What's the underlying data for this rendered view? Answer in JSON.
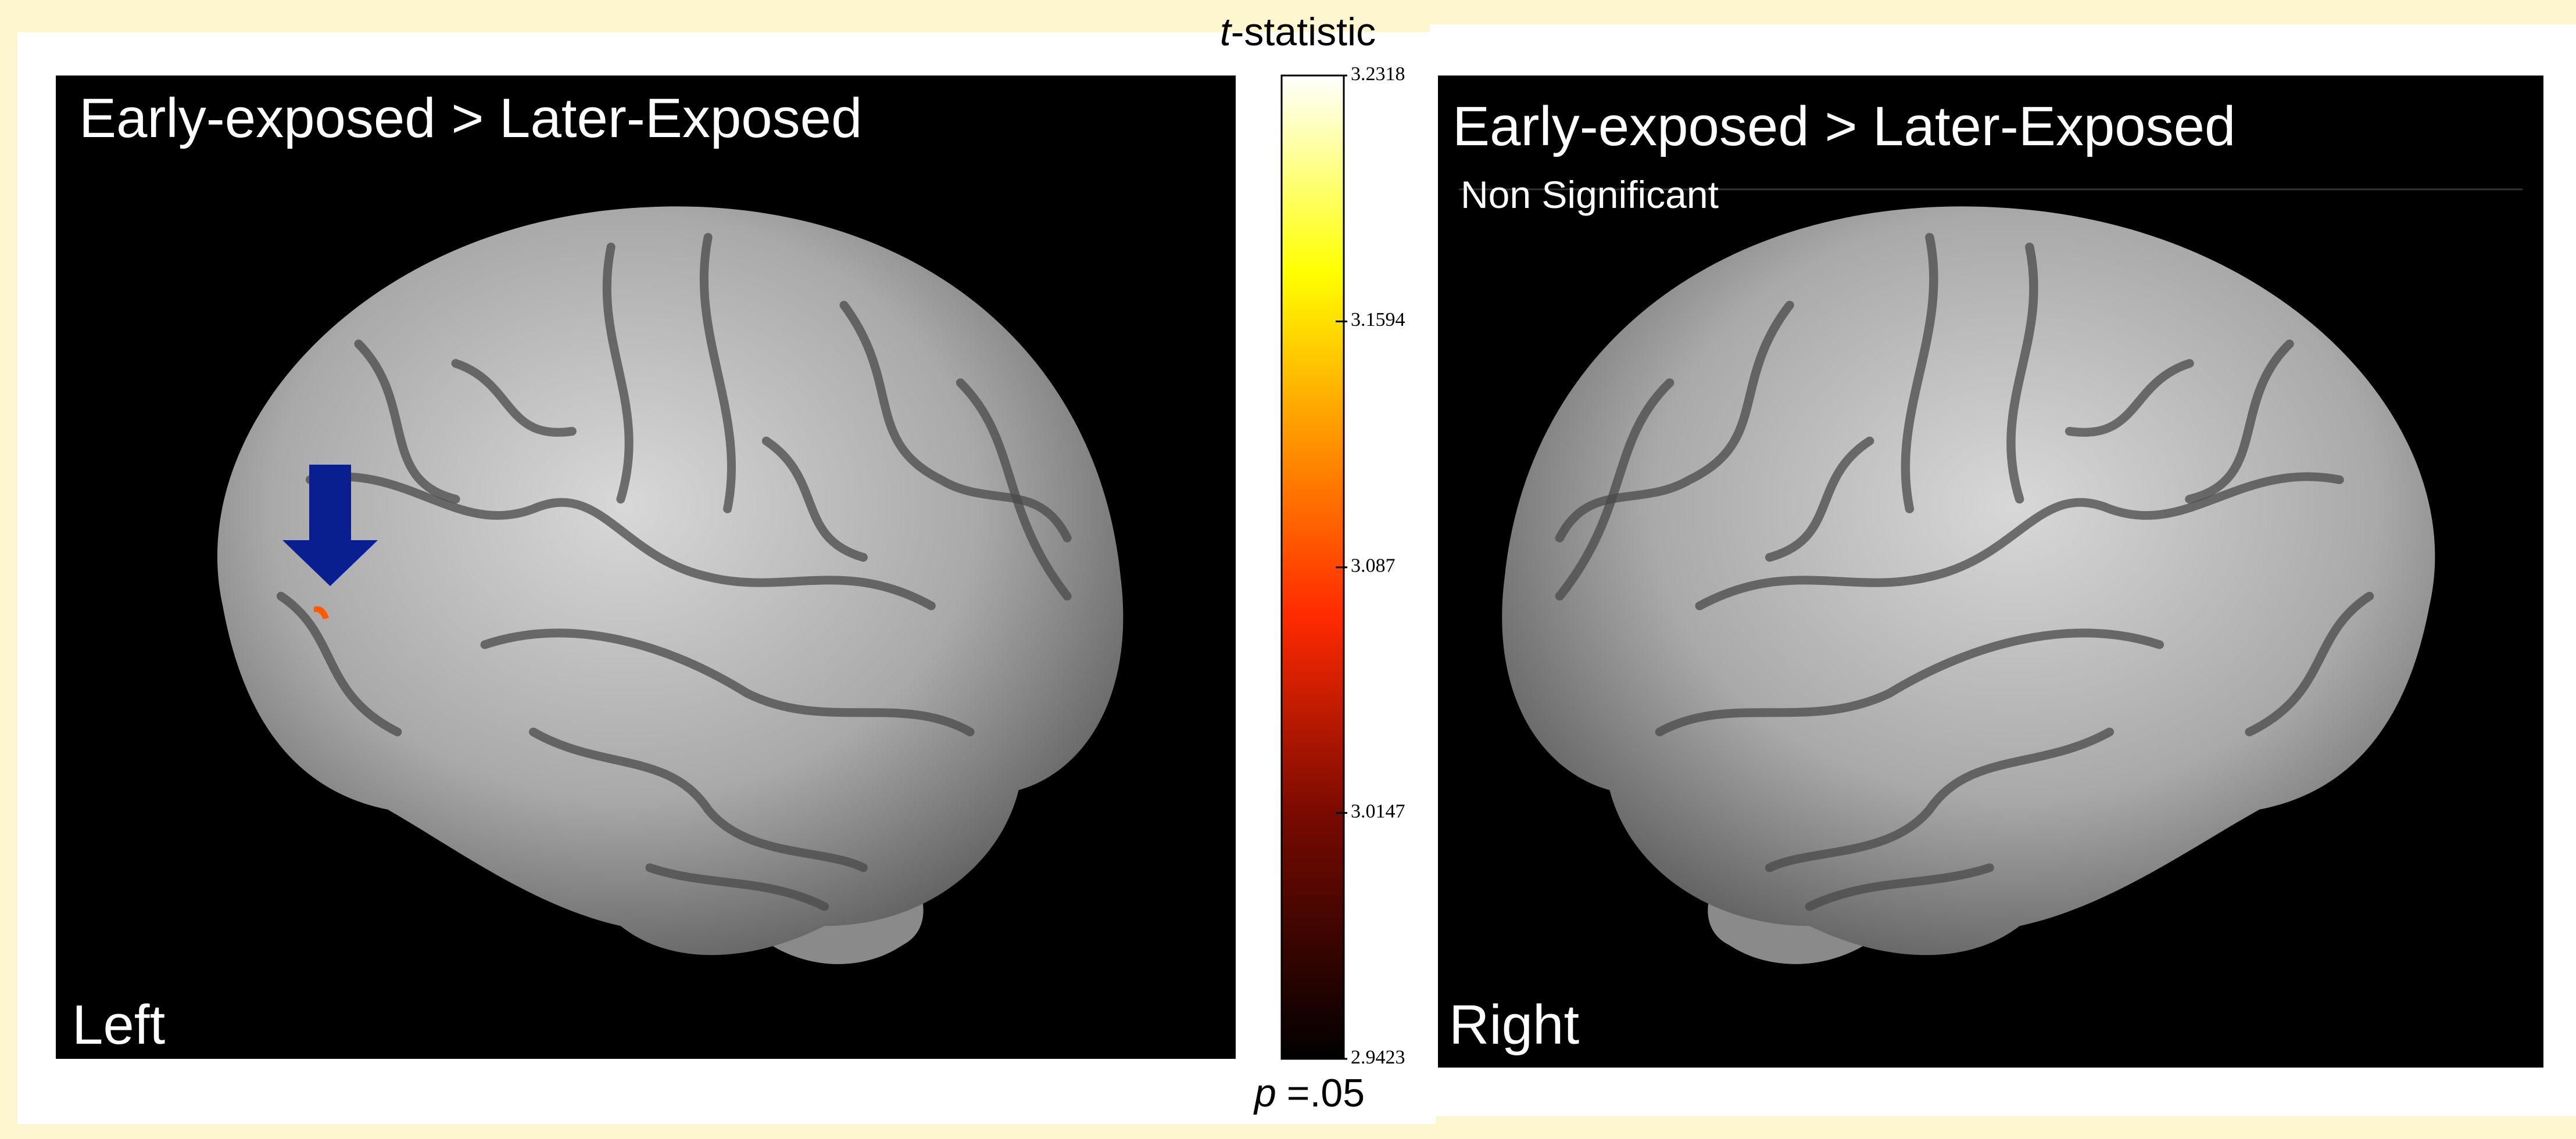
{
  "panels": [
    {
      "title": "Early-exposed > Later-Exposed",
      "side": "Left"
    },
    {
      "title": "Early-exposed > Later-Exposed",
      "note": "Non Significant",
      "side": "Right"
    }
  ],
  "colorbar": {
    "label_italic": "t",
    "label": "-statistic",
    "lim": [
      2.9423,
      3.2318
    ],
    "ticks": [
      3.2318,
      3.1594,
      3.087,
      3.0147,
      2.9423
    ],
    "threshold_italic": "p",
    "threshold": "=.05"
  }
}
